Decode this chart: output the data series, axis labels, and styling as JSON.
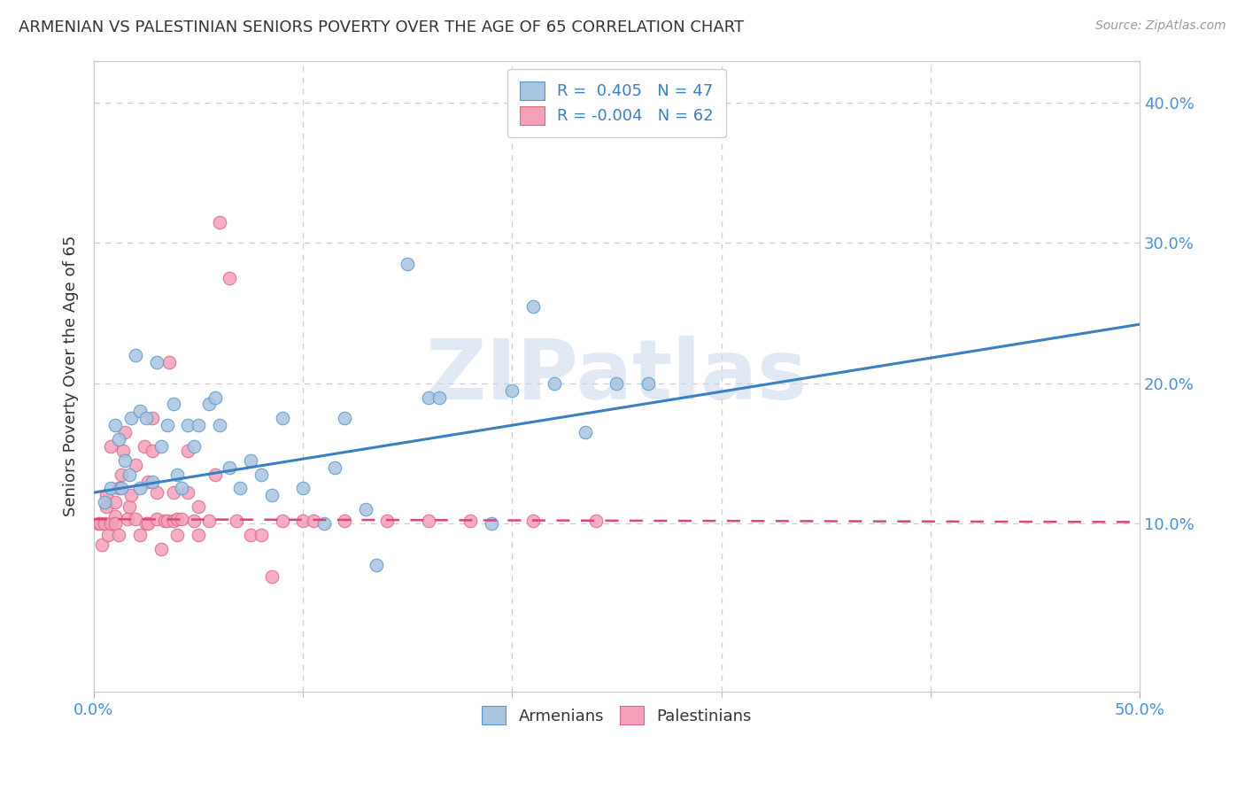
{
  "title": "ARMENIAN VS PALESTINIAN SENIORS POVERTY OVER THE AGE OF 65 CORRELATION CHART",
  "source": "Source: ZipAtlas.com",
  "ylabel": "Seniors Poverty Over the Age of 65",
  "xlim": [
    0.0,
    0.5
  ],
  "ylim": [
    -0.02,
    0.43
  ],
  "yticks_right": [
    0.1,
    0.2,
    0.3,
    0.4
  ],
  "yticklabels_right": [
    "10.0%",
    "20.0%",
    "30.0%",
    "40.0%"
  ],
  "xtick_major": [
    0.0,
    0.5
  ],
  "xticklabels_major": [
    "0.0%",
    "50.0%"
  ],
  "xtick_minor": [
    0.1,
    0.2,
    0.3,
    0.4
  ],
  "background_color": "#ffffff",
  "grid_color": "#cccccc",
  "watermark_text": "ZIPatlas",
  "armenian_color": "#a8c4e0",
  "armenian_edge_color": "#5599cc",
  "palestinian_color": "#f4a0b8",
  "palestinian_edge_color": "#dd6688",
  "armenian_line_color": "#3a7fc1",
  "palestinian_line_color": "#dd4477",
  "legend_r_armenian": "R =  0.405",
  "legend_n_armenian": "N = 47",
  "legend_r_palestinian": "R = -0.004",
  "legend_n_palestinian": "N = 62",
  "armenian_scatter": [
    [
      0.005,
      0.115
    ],
    [
      0.008,
      0.125
    ],
    [
      0.01,
      0.17
    ],
    [
      0.012,
      0.16
    ],
    [
      0.013,
      0.125
    ],
    [
      0.015,
      0.145
    ],
    [
      0.017,
      0.135
    ],
    [
      0.018,
      0.175
    ],
    [
      0.02,
      0.22
    ],
    [
      0.022,
      0.18
    ],
    [
      0.022,
      0.125
    ],
    [
      0.025,
      0.175
    ],
    [
      0.028,
      0.13
    ],
    [
      0.03,
      0.215
    ],
    [
      0.032,
      0.155
    ],
    [
      0.035,
      0.17
    ],
    [
      0.038,
      0.185
    ],
    [
      0.04,
      0.135
    ],
    [
      0.042,
      0.125
    ],
    [
      0.045,
      0.17
    ],
    [
      0.048,
      0.155
    ],
    [
      0.05,
      0.17
    ],
    [
      0.055,
      0.185
    ],
    [
      0.058,
      0.19
    ],
    [
      0.06,
      0.17
    ],
    [
      0.065,
      0.14
    ],
    [
      0.07,
      0.125
    ],
    [
      0.075,
      0.145
    ],
    [
      0.08,
      0.135
    ],
    [
      0.085,
      0.12
    ],
    [
      0.09,
      0.175
    ],
    [
      0.1,
      0.125
    ],
    [
      0.11,
      0.1
    ],
    [
      0.115,
      0.14
    ],
    [
      0.12,
      0.175
    ],
    [
      0.13,
      0.11
    ],
    [
      0.135,
      0.07
    ],
    [
      0.15,
      0.285
    ],
    [
      0.16,
      0.19
    ],
    [
      0.165,
      0.19
    ],
    [
      0.19,
      0.1
    ],
    [
      0.2,
      0.195
    ],
    [
      0.21,
      0.255
    ],
    [
      0.22,
      0.2
    ],
    [
      0.235,
      0.165
    ],
    [
      0.25,
      0.2
    ],
    [
      0.265,
      0.2
    ]
  ],
  "palestinian_scatter": [
    [
      0.002,
      0.1
    ],
    [
      0.003,
      0.1
    ],
    [
      0.004,
      0.085
    ],
    [
      0.005,
      0.1
    ],
    [
      0.006,
      0.112
    ],
    [
      0.006,
      0.12
    ],
    [
      0.007,
      0.092
    ],
    [
      0.008,
      0.1
    ],
    [
      0.008,
      0.155
    ],
    [
      0.01,
      0.105
    ],
    [
      0.01,
      0.115
    ],
    [
      0.01,
      0.1
    ],
    [
      0.012,
      0.092
    ],
    [
      0.012,
      0.125
    ],
    [
      0.013,
      0.135
    ],
    [
      0.014,
      0.152
    ],
    [
      0.015,
      0.165
    ],
    [
      0.016,
      0.103
    ],
    [
      0.017,
      0.112
    ],
    [
      0.018,
      0.12
    ],
    [
      0.02,
      0.142
    ],
    [
      0.02,
      0.103
    ],
    [
      0.022,
      0.092
    ],
    [
      0.024,
      0.155
    ],
    [
      0.025,
      0.1
    ],
    [
      0.026,
      0.1
    ],
    [
      0.026,
      0.13
    ],
    [
      0.028,
      0.152
    ],
    [
      0.028,
      0.175
    ],
    [
      0.03,
      0.103
    ],
    [
      0.03,
      0.122
    ],
    [
      0.032,
      0.082
    ],
    [
      0.034,
      0.102
    ],
    [
      0.035,
      0.102
    ],
    [
      0.036,
      0.215
    ],
    [
      0.038,
      0.102
    ],
    [
      0.038,
      0.122
    ],
    [
      0.04,
      0.103
    ],
    [
      0.04,
      0.092
    ],
    [
      0.042,
      0.103
    ],
    [
      0.045,
      0.122
    ],
    [
      0.045,
      0.152
    ],
    [
      0.048,
      0.102
    ],
    [
      0.05,
      0.112
    ],
    [
      0.05,
      0.092
    ],
    [
      0.055,
      0.102
    ],
    [
      0.058,
      0.135
    ],
    [
      0.06,
      0.315
    ],
    [
      0.065,
      0.275
    ],
    [
      0.068,
      0.102
    ],
    [
      0.075,
      0.092
    ],
    [
      0.08,
      0.092
    ],
    [
      0.085,
      0.062
    ],
    [
      0.09,
      0.102
    ],
    [
      0.1,
      0.102
    ],
    [
      0.105,
      0.102
    ],
    [
      0.12,
      0.102
    ],
    [
      0.14,
      0.102
    ],
    [
      0.16,
      0.102
    ],
    [
      0.18,
      0.102
    ],
    [
      0.21,
      0.102
    ],
    [
      0.24,
      0.102
    ]
  ],
  "armenian_trendline": [
    [
      0.0,
      0.122
    ],
    [
      0.5,
      0.242
    ]
  ],
  "palestinian_trendline": [
    [
      0.0,
      0.103
    ],
    [
      0.5,
      0.101
    ]
  ]
}
